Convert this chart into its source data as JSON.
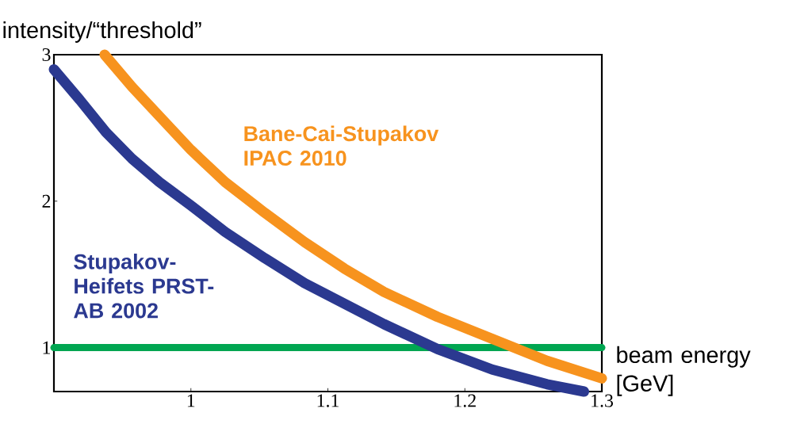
{
  "chart_data": {
    "type": "line",
    "ylabel": "intensity/“threshold”",
    "xlabel": "beam energy [GeV]",
    "xlim": [
      0.9,
      1.3
    ],
    "xticks": [
      1,
      1.1,
      1.2,
      1.3
    ],
    "ylim": [
      0.7,
      3
    ],
    "yticks": [
      1,
      2,
      3
    ],
    "series": [
      {
        "name": "Stupakov-Heifets PRST-AB 2002",
        "color": "#2b3990",
        "x": [
          0.9,
          0.919,
          0.938,
          0.957,
          0.977,
          1.0,
          1.025,
          1.054,
          1.083,
          1.112,
          1.141,
          1.18,
          1.22,
          1.26,
          1.287
        ],
        "values": [
          2.9,
          2.69,
          2.47,
          2.29,
          2.13,
          1.97,
          1.79,
          1.61,
          1.44,
          1.3,
          1.16,
          0.99,
          0.85,
          0.75,
          0.7
        ]
      },
      {
        "name": "Bane-Cai-Stupakov IPAC 2010",
        "color": "#f7931e",
        "x": [
          0.937,
          0.957,
          0.977,
          1.0,
          1.025,
          1.054,
          1.083,
          1.112,
          1.141,
          1.18,
          1.22,
          1.26,
          1.3
        ],
        "values": [
          3.0,
          2.78,
          2.58,
          2.35,
          2.13,
          1.92,
          1.72,
          1.54,
          1.38,
          1.21,
          1.06,
          0.91,
          0.79
        ]
      }
    ],
    "ref_lines": [
      {
        "axis": "y",
        "value": 1,
        "color": "#00a651"
      }
    ],
    "grid": false,
    "legend": false,
    "marker": "none",
    "line_style": "solid"
  }
}
